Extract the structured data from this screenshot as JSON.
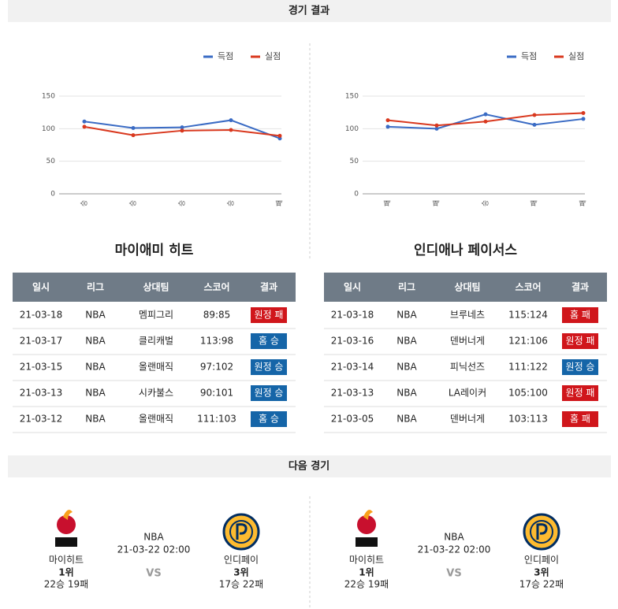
{
  "header": {
    "results_title": "경기 결과",
    "next_title": "다음 경기"
  },
  "chart_data": [
    {
      "type": "line",
      "categories": [
        "승",
        "승",
        "승",
        "승",
        "패"
      ],
      "series": [
        {
          "name": "득점",
          "color": "#3a6bc4",
          "values": [
            111,
            101,
            102,
            113,
            85
          ]
        },
        {
          "name": "실점",
          "color": "#d9381e",
          "values": [
            103,
            90,
            97,
            98,
            89
          ]
        }
      ],
      "ylim": [
        0,
        150
      ],
      "yticks": [
        0,
        50,
        100,
        150
      ],
      "grid": true,
      "legend": "top-right"
    },
    {
      "type": "line",
      "categories": [
        "패",
        "패",
        "승",
        "패",
        "패"
      ],
      "series": [
        {
          "name": "득점",
          "color": "#3a6bc4",
          "values": [
            103,
            100,
            122,
            106,
            115
          ]
        },
        {
          "name": "실점",
          "color": "#d9381e",
          "values": [
            113,
            105,
            111,
            121,
            124
          ]
        }
      ],
      "ylim": [
        0,
        150
      ],
      "yticks": [
        0,
        50,
        100,
        150
      ],
      "grid": true,
      "legend": "top-right"
    }
  ],
  "teams": [
    {
      "name": "마이애미 히트",
      "table": {
        "columns": [
          "일시",
          "리그",
          "상대팀",
          "스코어",
          "결과"
        ],
        "rows": [
          [
            "21-03-18",
            "NBA",
            "멤피그리",
            "89:85",
            "원정 패"
          ],
          [
            "21-03-17",
            "NBA",
            "클리캐벌",
            "113:98",
            "홈 승"
          ],
          [
            "21-03-15",
            "NBA",
            "올랜매직",
            "97:102",
            "원정 승"
          ],
          [
            "21-03-13",
            "NBA",
            "시카불스",
            "90:101",
            "원정 승"
          ],
          [
            "21-03-12",
            "NBA",
            "올랜매직",
            "111:103",
            "홈 승"
          ]
        ],
        "result_colors": [
          "#d0161b",
          "#1565a8",
          "#1565a8",
          "#1565a8",
          "#1565a8"
        ]
      }
    },
    {
      "name": "인디애나 페이서스",
      "table": {
        "columns": [
          "일시",
          "리그",
          "상대팀",
          "스코어",
          "결과"
        ],
        "rows": [
          [
            "21-03-18",
            "NBA",
            "브루네츠",
            "115:124",
            "홈 패"
          ],
          [
            "21-03-16",
            "NBA",
            "덴버너게",
            "121:106",
            "원정 패"
          ],
          [
            "21-03-14",
            "NBA",
            "피닉선즈",
            "111:122",
            "원정 승"
          ],
          [
            "21-03-13",
            "NBA",
            "LA레이커",
            "105:100",
            "원정 패"
          ],
          [
            "21-03-05",
            "NBA",
            "덴버너게",
            "103:113",
            "홈 패"
          ]
        ],
        "result_colors": [
          "#d0161b",
          "#d0161b",
          "#1565a8",
          "#d0161b",
          "#d0161b"
        ]
      }
    }
  ],
  "next_games": [
    {
      "league": "NBA",
      "datetime": "21-03-22 02:00",
      "vs": "VS",
      "home": {
        "name": "마이히트",
        "rank": "1위",
        "record": "22승 19패"
      },
      "away": {
        "name": "인디페이",
        "rank": "3위",
        "record": "17승 22패"
      }
    },
    {
      "league": "NBA",
      "datetime": "21-03-22 02:00",
      "vs": "VS",
      "home": {
        "name": "마이히트",
        "rank": "1위",
        "record": "22승 19패"
      },
      "away": {
        "name": "인디페이",
        "rank": "3위",
        "record": "17승 22패"
      }
    }
  ]
}
